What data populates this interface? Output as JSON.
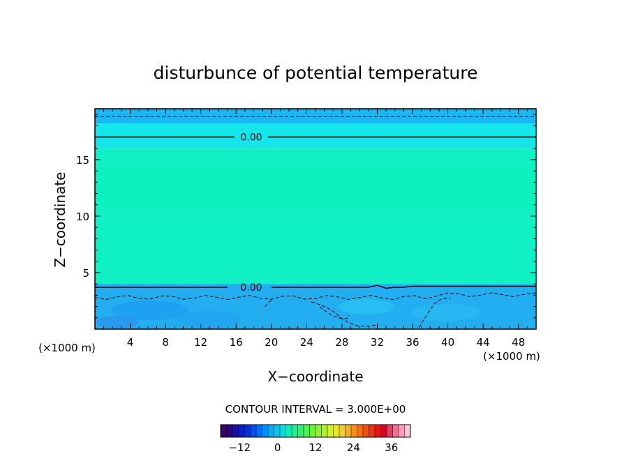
{
  "chart_data": {
    "type": "heatmap",
    "title": "disturbunce of potential temperature",
    "xlabel": "X−coordinate",
    "ylabel": "Z−coordinate",
    "x_unit_label": "(×1000 m)",
    "y_unit_label": "(×1000 m)",
    "xlim": [
      0,
      50
    ],
    "ylim": [
      0,
      19.5
    ],
    "x_ticks": [
      4,
      8,
      12,
      16,
      20,
      24,
      28,
      32,
      36,
      40,
      44,
      48
    ],
    "y_ticks": [
      5,
      10,
      15
    ],
    "grid": false,
    "layers": [
      {
        "z_range": [
          18.2,
          19.5
        ],
        "value": -1.5,
        "color": "#19b8f4"
      },
      {
        "z_range": [
          16.0,
          18.2
        ],
        "value": -0.5,
        "color": "#14e6ec"
      },
      {
        "z_range": [
          4.0,
          16.0
        ],
        "value": 1.5,
        "color": "#10f2c6"
      },
      {
        "z_range": [
          0.0,
          4.0
        ],
        "value": -2.0,
        "color": "#23aef2"
      }
    ],
    "contours": [
      {
        "level": 0.0,
        "label": "0.00",
        "style": "solid",
        "z": 17.0
      },
      {
        "level": 0.0,
        "label": "0.00",
        "style": "solid",
        "z": 3.7
      },
      {
        "level": -1.5,
        "style": "dashed",
        "z": 18.8
      },
      {
        "level": -1.5,
        "style": "dashed",
        "z": 2.8
      }
    ],
    "contour_interval_text": "CONTOUR INTERVAL = 3.000E+00",
    "colorbar": {
      "range": [
        -18,
        42
      ],
      "ticks": [
        "−12",
        "0",
        "12",
        "24",
        "36"
      ],
      "tick_values": [
        -12,
        0,
        12,
        24,
        36
      ],
      "colors": [
        "#3a0066",
        "#2a0080",
        "#1a10a0",
        "#0a20c0",
        "#0030e0",
        "#0050f0",
        "#0070f4",
        "#0090f6",
        "#00aef6",
        "#00c8f0",
        "#10dcd8",
        "#10ecb8",
        "#20f090",
        "#30f070",
        "#50f050",
        "#70f040",
        "#90f030",
        "#b0f030",
        "#d0f030",
        "#e8e830",
        "#f0d030",
        "#f4b028",
        "#f49020",
        "#f47018",
        "#f45010",
        "#f03010",
        "#e01818",
        "#d00828",
        "#e04060",
        "#f07090",
        "#f8a0b8",
        "#fcc8d8"
      ]
    }
  }
}
